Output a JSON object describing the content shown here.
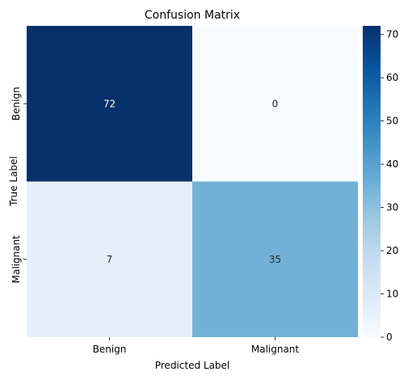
{
  "chart_data": {
    "type": "heatmap",
    "title": "Confusion Matrix",
    "xlabel": "Predicted Label",
    "ylabel": "True Label",
    "x_categories": [
      "Benign",
      "Malignant"
    ],
    "y_categories": [
      "Benign",
      "Malignant"
    ],
    "values": [
      [
        72,
        0
      ],
      [
        7,
        35
      ]
    ],
    "annotations": [
      [
        "72",
        "0"
      ],
      [
        "7",
        "35"
      ]
    ],
    "colorscale": "Blues",
    "colorbar": {
      "range": [
        0,
        72
      ],
      "ticks": [
        0,
        10,
        20,
        30,
        40,
        50,
        60,
        70
      ],
      "tick_labels": [
        "0",
        "10",
        "20",
        "30",
        "40",
        "50",
        "60",
        "70"
      ]
    }
  }
}
